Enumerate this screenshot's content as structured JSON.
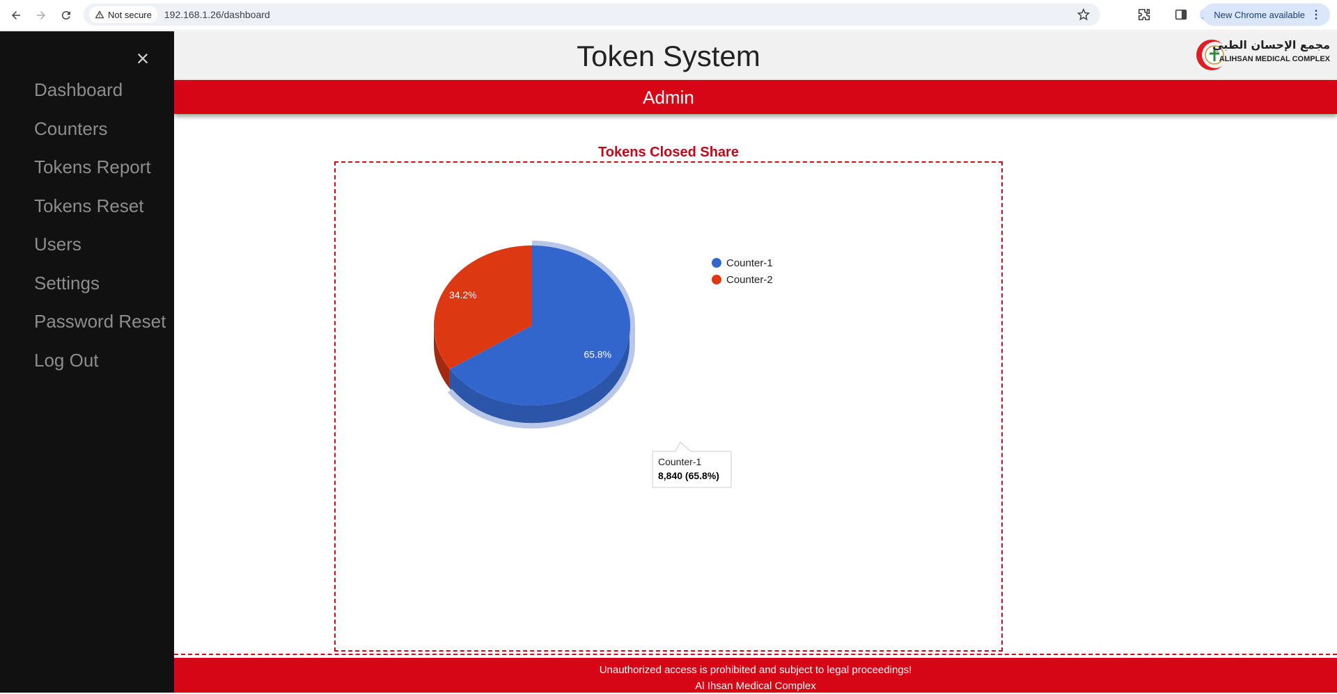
{
  "browser": {
    "security_label": "Not secure",
    "url": "192.168.1.26/dashboard",
    "update_label": "New Chrome available"
  },
  "sidebar": {
    "close_icon": "close-icon",
    "items": [
      {
        "label": "Dashboard"
      },
      {
        "label": "Counters"
      },
      {
        "label": "Tokens Report"
      },
      {
        "label": "Tokens Reset"
      },
      {
        "label": "Users"
      },
      {
        "label": "Settings"
      },
      {
        "label": "Password Reset"
      },
      {
        "label": "Log Out"
      }
    ]
  },
  "header": {
    "title": "Token System",
    "logo_arabic": "مجمع الإحسان الطبي",
    "logo_english": "ALIHSAN MEDICAL COMPLEX",
    "role": "Admin"
  },
  "chart": {
    "title": "Tokens Closed Share",
    "tooltip_name": "Counter-1",
    "tooltip_value": "8,840 (65.8%)"
  },
  "chart_data": {
    "type": "pie",
    "title": "Tokens Closed Share",
    "categories": [
      "Counter-1",
      "Counter-2"
    ],
    "values": [
      65.8,
      34.2
    ],
    "value_unit": "%",
    "slice_labels": [
      "65.8%",
      "34.2%"
    ],
    "colors": [
      "#3366cc",
      "#dc3912"
    ],
    "legend": "right",
    "three_d": true,
    "highlighted": "Counter-1"
  },
  "footer": {
    "line1": "Unauthorized access is prohibited and subject to legal proceedings!",
    "line2": "Al Ihsan Medical Complex"
  },
  "colors": {
    "sidebar_bg": "#111111",
    "brand_red": "#d60617",
    "header_bg": "#f1f1f1"
  }
}
